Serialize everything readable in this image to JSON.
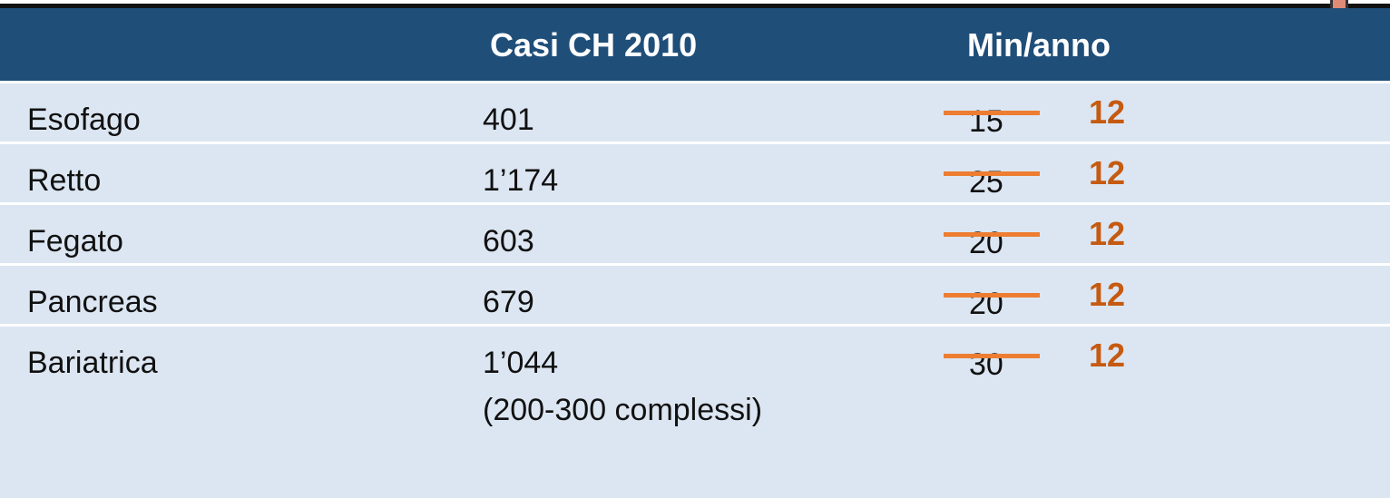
{
  "table": {
    "header": [
      "Casi CH 2010",
      "Min/anno"
    ],
    "rows": [
      {
        "label": "Esofago",
        "cases": "401",
        "old": 15,
        "new": 12
      },
      {
        "label": "Retto",
        "cases": "1’174",
        "old": 25,
        "new": 12
      },
      {
        "label": "Fegato",
        "cases": "603",
        "old": 20,
        "new": 12
      },
      {
        "label": "Pancreas",
        "cases": "679",
        "old": 20,
        "new": 12
      },
      {
        "label": "Bariatrica",
        "cases": "1’044",
        "note": "(200-300 complessi)",
        "old": 30,
        "new": 12
      }
    ]
  }
}
